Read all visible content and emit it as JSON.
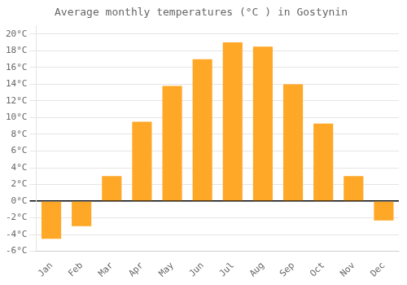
{
  "chart_data": {
    "type": "bar",
    "title": "Average monthly temperatures (°C ) in Gostynin",
    "categories": [
      "Jan",
      "Feb",
      "Mar",
      "Apr",
      "May",
      "Jun",
      "Jul",
      "Aug",
      "Sep",
      "Oct",
      "Nov",
      "Dec"
    ],
    "values": [
      -4.5,
      -3.0,
      3.0,
      9.5,
      13.8,
      17.0,
      19.0,
      18.5,
      14.0,
      9.3,
      3.0,
      -2.3
    ],
    "color": "#FFA726",
    "ylim": [
      -6,
      21
    ],
    "yticks": [
      {
        "value": -6,
        "label": "-6°C"
      },
      {
        "value": -4,
        "label": "-4°C"
      },
      {
        "value": -2,
        "label": "-2°C"
      },
      {
        "value": 0,
        "label": "0°C"
      },
      {
        "value": 2,
        "label": "2°C"
      },
      {
        "value": 4,
        "label": "4°C"
      },
      {
        "value": 6,
        "label": "6°C"
      },
      {
        "value": 8,
        "label": "8°C"
      },
      {
        "value": 10,
        "label": "10°C"
      },
      {
        "value": 12,
        "label": "12°C"
      },
      {
        "value": 14,
        "label": "14°C"
      },
      {
        "value": 16,
        "label": "16°C"
      },
      {
        "value": 18,
        "label": "18°C"
      },
      {
        "value": 20,
        "label": "20°C"
      }
    ],
    "grid": true
  }
}
